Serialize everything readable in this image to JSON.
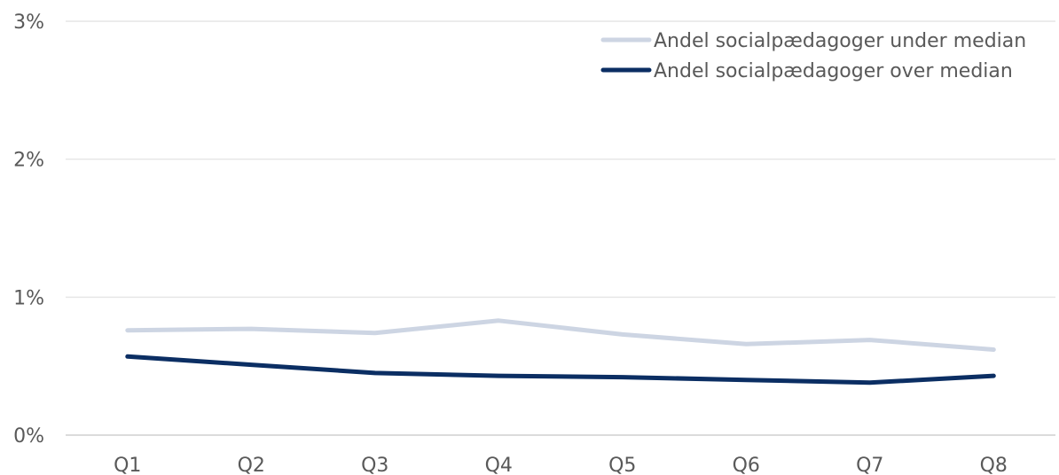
{
  "chart_data": {
    "type": "line",
    "categories": [
      "Q1",
      "Q2",
      "Q3",
      "Q4",
      "Q5",
      "Q6",
      "Q7",
      "Q8"
    ],
    "y_ticks": [
      "0%",
      "1%",
      "2%",
      "3%"
    ],
    "ylim": [
      0,
      3
    ],
    "grid": true,
    "legend_position": "top-right",
    "series": [
      {
        "name": "Andel socialpædagoger under median",
        "color": "#cdd5e3",
        "values": [
          0.76,
          0.77,
          0.74,
          0.83,
          0.73,
          0.66,
          0.69,
          0.62
        ]
      },
      {
        "name": "Andel socialpædagoger over median",
        "color": "#0b2e63",
        "values": [
          0.57,
          0.51,
          0.45,
          0.43,
          0.42,
          0.4,
          0.38,
          0.43
        ]
      }
    ]
  }
}
